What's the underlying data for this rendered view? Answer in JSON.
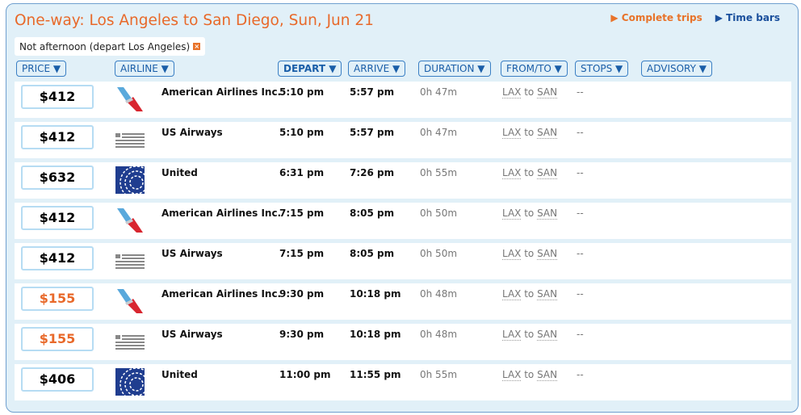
{
  "title": "One-way: Los Angeles to San Diego, Sun, Jun 21",
  "links": {
    "complete_trips": "▶ Complete trips",
    "time_bars": "▶ Time bars"
  },
  "filter": {
    "label": "Not afternoon (depart Los Angeles)",
    "remove": "×"
  },
  "headers": [
    "PRICE ▼",
    "AIRLINE ▼",
    "DEPART ▼",
    "ARRIVE ▼",
    "DURATION ▼",
    "FROM/TO ▼",
    "STOPS ▼",
    "ADVISORY ▼"
  ],
  "colors": {
    "accent": "#e8692a",
    "link": "#1a5ea8",
    "panel": "#e1f0f8"
  },
  "rows": [
    {
      "price": "$412",
      "deal": false,
      "logo": "american-airlines-logo",
      "airline": "American Airlines Inc.",
      "depart": "5:10 pm",
      "arrive": "5:57 pm",
      "duration": "0h 47m",
      "from": "LAX",
      "to_word": "to",
      "to": "SAN",
      "stops": "--"
    },
    {
      "price": "$412",
      "deal": false,
      "logo": "us-airways-logo",
      "airline": "US Airways",
      "depart": "5:10 pm",
      "arrive": "5:57 pm",
      "duration": "0h 47m",
      "from": "LAX",
      "to_word": "to",
      "to": "SAN",
      "stops": "--"
    },
    {
      "price": "$632",
      "deal": false,
      "logo": "united-logo",
      "airline": "United",
      "depart": "6:31 pm",
      "arrive": "7:26 pm",
      "duration": "0h 55m",
      "from": "LAX",
      "to_word": "to",
      "to": "SAN",
      "stops": "--"
    },
    {
      "price": "$412",
      "deal": false,
      "logo": "american-airlines-logo",
      "airline": "American Airlines Inc.",
      "depart": "7:15 pm",
      "arrive": "8:05 pm",
      "duration": "0h 50m",
      "from": "LAX",
      "to_word": "to",
      "to": "SAN",
      "stops": "--"
    },
    {
      "price": "$412",
      "deal": false,
      "logo": "us-airways-logo",
      "airline": "US Airways",
      "depart": "7:15 pm",
      "arrive": "8:05 pm",
      "duration": "0h 50m",
      "from": "LAX",
      "to_word": "to",
      "to": "SAN",
      "stops": "--"
    },
    {
      "price": "$155",
      "deal": true,
      "logo": "american-airlines-logo",
      "airline": "American Airlines Inc.",
      "depart": "9:30 pm",
      "arrive": "10:18 pm",
      "duration": "0h 48m",
      "from": "LAX",
      "to_word": "to",
      "to": "SAN",
      "stops": "--"
    },
    {
      "price": "$155",
      "deal": true,
      "logo": "us-airways-logo",
      "airline": "US Airways",
      "depart": "9:30 pm",
      "arrive": "10:18 pm",
      "duration": "0h 48m",
      "from": "LAX",
      "to_word": "to",
      "to": "SAN",
      "stops": "--"
    },
    {
      "price": "$406",
      "deal": false,
      "logo": "united-logo",
      "airline": "United",
      "depart": "11:00 pm",
      "arrive": "11:55 pm",
      "duration": "0h 55m",
      "from": "LAX",
      "to_word": "to",
      "to": "SAN",
      "stops": "--"
    }
  ]
}
